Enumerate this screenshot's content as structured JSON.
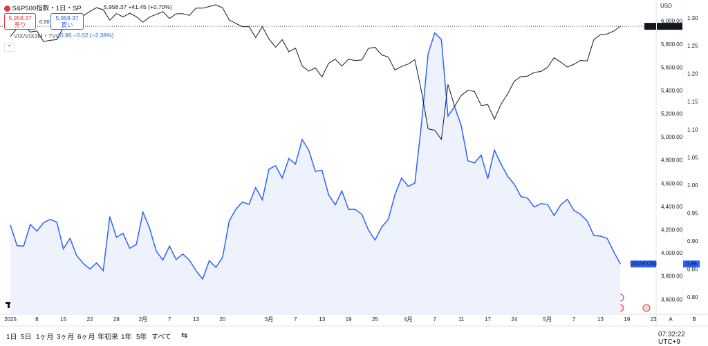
{
  "ui": {
    "symbol": "S&P500指数・1日・SP",
    "last": "5,958.37",
    "change": "+41.45 (+0.70%)",
    "sell_price": "5,958.37",
    "sell": "売り",
    "spread": "0.00",
    "buy_price": "5,958.37",
    "buy": "買い",
    "compare_symbol": "VIX/VIX3M・TVC",
    "compare_last": "0.86",
    "compare_change": "−0.02 (−2.38%)",
    "currency": "USD",
    "spx_tag_value": "5,958.37",
    "vix_tag_value": "0.86",
    "ranges": [
      "1日",
      "5日",
      "1ヶ月",
      "3ヶ月",
      "6ヶ月",
      "年初来",
      "1年",
      "5年",
      "すべて"
    ],
    "clock": "07:32:22 UTC+9",
    "scale_buttons": [
      "A",
      "B"
    ]
  },
  "chart_data": {
    "type": "line",
    "categories": [
      "2025",
      null,
      null,
      null,
      "8",
      null,
      null,
      null,
      "15",
      null,
      null,
      null,
      "22",
      null,
      null,
      null,
      "28",
      null,
      null,
      null,
      "2月",
      null,
      null,
      null,
      "7",
      null,
      null,
      null,
      "13",
      null,
      null,
      null,
      "20",
      null,
      null,
      null,
      null,
      null,
      null,
      "3月",
      null,
      null,
      null,
      "7",
      null,
      null,
      null,
      "13",
      null,
      null,
      null,
      "19",
      null,
      null,
      null,
      "25",
      null,
      null,
      null,
      null,
      "4月",
      null,
      null,
      null,
      "7",
      null,
      null,
      null,
      "11",
      null,
      null,
      null,
      "17",
      null,
      null,
      null,
      "24",
      null,
      null,
      null,
      null,
      "5月",
      null,
      null,
      null,
      "7",
      null,
      null,
      null,
      "13",
      null,
      null,
      null,
      "19",
      null,
      null,
      null,
      "23"
    ],
    "series": [
      {
        "name": "SPX",
        "color": "#131722",
        "values": [
          5869,
          5942,
          5975,
          5909,
          5918,
          5827,
          5837,
          5843,
          5950,
          5937,
          5997,
          6049,
          6086,
          6119,
          6101,
          6012,
          6068,
          6039,
          6071,
          6041,
          5994,
          6038,
          6061,
          6084,
          6026,
          6066,
          6068,
          6052,
          6115,
          6115,
          6129,
          6144,
          6117,
          6013,
          5983,
          5955,
          5956,
          5861,
          5955,
          5850,
          5778,
          5843,
          5739,
          5770,
          5615,
          5572,
          5599,
          5522,
          5639,
          5675,
          5615,
          5675,
          5663,
          5668,
          5768,
          5777,
          5712,
          5693,
          5581,
          5612,
          5633,
          5671,
          5397,
          5074,
          5062,
          4983,
          5457,
          5268,
          5363,
          5406,
          5397,
          5276,
          5283,
          5158,
          5288,
          5376,
          5485,
          5525,
          5529,
          5561,
          5569,
          5604,
          5687,
          5650,
          5607,
          5631,
          5664,
          5660,
          5844,
          5886,
          5892,
          5917,
          5958.37,
          null,
          null,
          null,
          null,
          null
        ]
      },
      {
        "name": "VIX/VIX3M",
        "color": "#2962ff",
        "axis": "y2",
        "area_color": "#eef2fd",
        "values": [
          0.93,
          0.893,
          0.892,
          0.931,
          0.919,
          0.934,
          0.94,
          0.935,
          0.887,
          0.906,
          0.875,
          0.861,
          0.851,
          0.862,
          0.848,
          0.945,
          0.908,
          0.915,
          0.888,
          0.895,
          0.953,
          0.924,
          0.883,
          0.867,
          0.892,
          0.868,
          0.878,
          0.867,
          0.848,
          0.833,
          0.866,
          0.854,
          0.872,
          0.937,
          0.958,
          0.971,
          0.967,
          0.997,
          0.975,
          1.03,
          1.036,
          1.014,
          1.049,
          1.039,
          1.083,
          1.064,
          1.026,
          1.028,
          0.984,
          0.966,
          0.991,
          0.958,
          0.958,
          0.949,
          0.921,
          0.903,
          0.926,
          0.94,
          0.984,
          1.014,
          0.999,
          1.005,
          1.111,
          1.237,
          1.274,
          1.262,
          1.125,
          1.142,
          1.108,
          1.045,
          1.041,
          1.055,
          1.013,
          1.064,
          1.039,
          1.017,
          1.003,
          0.981,
          0.978,
          0.962,
          0.968,
          0.967,
          0.947,
          0.966,
          0.976,
          0.956,
          0.949,
          0.937,
          0.911,
          0.91,
          0.906,
          0.882,
          0.86,
          null,
          null,
          null,
          null,
          null
        ]
      }
    ],
    "ylim": [
      3476,
      6185
    ],
    "yticks": [
      {
        "value": 3600,
        "label": "3,600.00"
      },
      {
        "value": 3800,
        "label": "3,800.00"
      },
      {
        "value": 4000,
        "label": "4,000.00"
      },
      {
        "value": 4200,
        "label": "4,200.00"
      },
      {
        "value": 4400,
        "label": "4,400.00"
      },
      {
        "value": 4600,
        "label": "4,600.00"
      },
      {
        "value": 4800,
        "label": "4,800.00"
      },
      {
        "value": 5000,
        "label": "5,000.00"
      },
      {
        "value": 5200,
        "label": "5,200.00"
      },
      {
        "value": 5400,
        "label": "5,400.00"
      },
      {
        "value": 5600,
        "label": "5,600.00"
      },
      {
        "value": 5800,
        "label": "5,800.00"
      },
      {
        "value": 6000,
        "label": "6,000.00"
      }
    ],
    "y2lim": [
      0.77,
      1.333
    ],
    "y2ticks": [
      {
        "value": 0.8,
        "label": "0.80"
      },
      {
        "value": 0.85,
        "label": "0.85"
      },
      {
        "value": 0.9,
        "label": "0.90"
      },
      {
        "value": 0.95,
        "label": "0.95"
      },
      {
        "value": 1.0,
        "label": "1.00"
      },
      {
        "value": 1.05,
        "label": "1.05"
      },
      {
        "value": 1.1,
        "label": "1.10"
      },
      {
        "value": 1.15,
        "label": "1.15"
      },
      {
        "value": 1.2,
        "label": "1.20"
      },
      {
        "value": 1.25,
        "label": "1.25"
      },
      {
        "value": 1.3,
        "label": "1.30"
      }
    ],
    "grid": false
  }
}
